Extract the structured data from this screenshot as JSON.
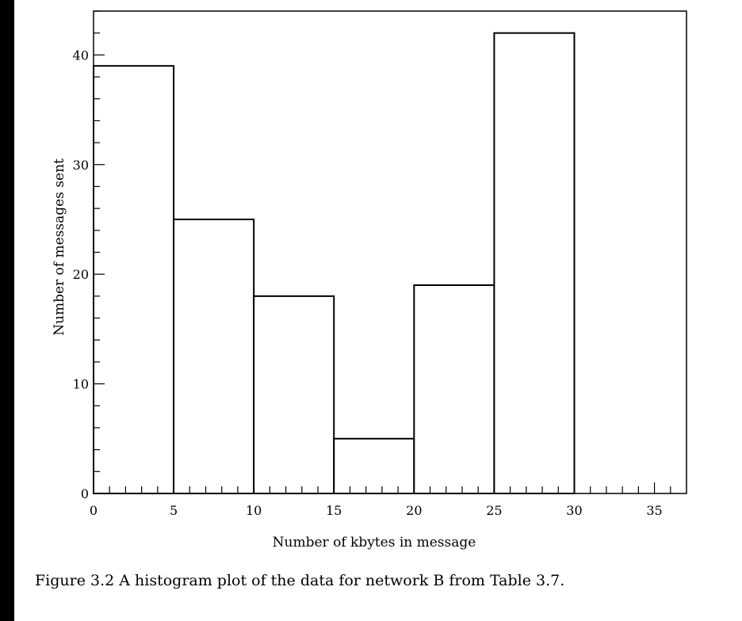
{
  "chart_data": {
    "type": "bar",
    "histogram": true,
    "bins": [
      {
        "start": 0,
        "end": 5,
        "count": 39
      },
      {
        "start": 5,
        "end": 10,
        "count": 25
      },
      {
        "start": 10,
        "end": 15,
        "count": 18
      },
      {
        "start": 15,
        "end": 20,
        "count": 5
      },
      {
        "start": 20,
        "end": 25,
        "count": 19
      },
      {
        "start": 25,
        "end": 30,
        "count": 42
      }
    ],
    "xlabel": "Number of kbytes in message",
    "ylabel": "Number of messages sent",
    "xlim": [
      0,
      37
    ],
    "ylim": [
      0,
      44
    ],
    "xticks": [
      0,
      5,
      10,
      15,
      20,
      25,
      30,
      35
    ],
    "yticks": [
      0,
      10,
      20,
      30,
      40
    ],
    "grid": false,
    "bar_fill": "#ffffff",
    "line_color": "#000000"
  },
  "caption": "Figure 3.2  A histogram plot of the data for network B from Table 3.7."
}
